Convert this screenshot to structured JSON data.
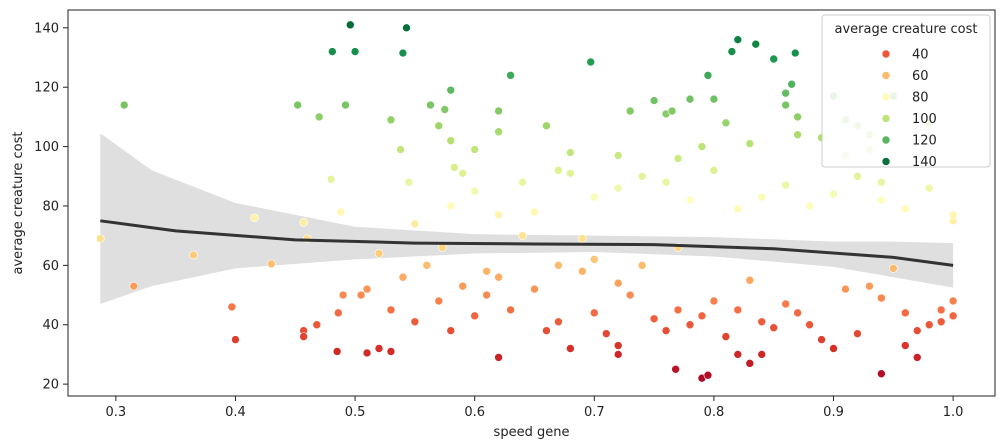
{
  "chart_data": {
    "type": "scatter",
    "xlabel": "speed gene",
    "ylabel": "average creature cost",
    "xlim": [
      0.26,
      1.035
    ],
    "ylim": [
      16,
      146
    ],
    "xticks": [
      0.3,
      0.4,
      0.5,
      0.6,
      0.7,
      0.8,
      0.9,
      1.0
    ],
    "xtick_labels": [
      "0.3",
      "0.4",
      "0.5",
      "0.6",
      "0.7",
      "0.8",
      "0.9",
      "1.0"
    ],
    "yticks": [
      20,
      40,
      60,
      80,
      100,
      120,
      140
    ],
    "ytick_labels": [
      "20",
      "40",
      "60",
      "80",
      "100",
      "120",
      "140"
    ],
    "grid": false,
    "hue_range": [
      20,
      142
    ],
    "legend": {
      "title": "average creature cost",
      "placement": "top-right",
      "entries": [
        {
          "label": "40",
          "value": 40
        },
        {
          "label": "60",
          "value": 60
        },
        {
          "label": "80",
          "value": 80
        },
        {
          "label": "100",
          "value": 100
        },
        {
          "label": "120",
          "value": 120
        },
        {
          "label": "140",
          "value": 140
        }
      ]
    },
    "colormap": [
      "#a50026",
      "#d73027",
      "#f46d43",
      "#fdae61",
      "#fee08b",
      "#ffffbf",
      "#d9ef8b",
      "#a6d96a",
      "#66bd63",
      "#1a9850",
      "#006837"
    ],
    "points": [
      [
        0.287,
        69
      ],
      [
        0.307,
        114
      ],
      [
        0.315,
        53
      ],
      [
        0.365,
        63.5
      ],
      [
        0.397,
        46
      ],
      [
        0.4,
        35
      ],
      [
        0.416,
        76
      ],
      [
        0.43,
        60.5
      ],
      [
        0.452,
        114
      ],
      [
        0.457,
        74.5
      ],
      [
        0.457,
        38
      ],
      [
        0.457,
        36
      ],
      [
        0.46,
        69
      ],
      [
        0.468,
        40
      ],
      [
        0.47,
        110
      ],
      [
        0.48,
        89
      ],
      [
        0.481,
        132
      ],
      [
        0.485,
        31
      ],
      [
        0.486,
        44
      ],
      [
        0.488,
        78
      ],
      [
        0.49,
        50
      ],
      [
        0.492,
        114
      ],
      [
        0.496,
        141
      ],
      [
        0.5,
        132
      ],
      [
        0.505,
        50
      ],
      [
        0.51,
        30.5
      ],
      [
        0.52,
        32
      ],
      [
        0.53,
        31
      ],
      [
        0.53,
        109
      ],
      [
        0.54,
        131.5
      ],
      [
        0.543,
        140
      ],
      [
        0.538,
        99
      ],
      [
        0.545,
        88
      ],
      [
        0.563,
        114
      ],
      [
        0.57,
        107
      ],
      [
        0.575,
        112.5
      ],
      [
        0.58,
        119
      ],
      [
        0.58,
        102
      ],
      [
        0.583,
        93
      ],
      [
        0.573,
        66
      ],
      [
        0.58,
        38
      ],
      [
        0.59,
        91
      ],
      [
        0.61,
        58
      ],
      [
        0.62,
        29
      ],
      [
        0.62,
        112
      ],
      [
        0.62,
        105
      ],
      [
        0.63,
        124
      ],
      [
        0.64,
        88
      ],
      [
        0.66,
        107
      ],
      [
        0.67,
        60
      ],
      [
        0.68,
        91
      ],
      [
        0.69,
        69
      ],
      [
        0.697,
        128.5
      ],
      [
        0.7,
        62
      ],
      [
        0.72,
        30
      ],
      [
        0.72,
        33
      ],
      [
        0.73,
        112
      ],
      [
        0.75,
        115.5
      ],
      [
        0.76,
        111
      ],
      [
        0.765,
        112
      ],
      [
        0.768,
        25
      ],
      [
        0.77,
        45
      ],
      [
        0.78,
        116
      ],
      [
        0.79,
        22
      ],
      [
        0.795,
        23
      ],
      [
        0.795,
        124
      ],
      [
        0.8,
        116
      ],
      [
        0.81,
        108
      ],
      [
        0.815,
        132
      ],
      [
        0.82,
        136
      ],
      [
        0.82,
        30
      ],
      [
        0.83,
        27
      ],
      [
        0.835,
        134.5
      ],
      [
        0.84,
        30
      ],
      [
        0.85,
        129.5
      ],
      [
        0.86,
        118
      ],
      [
        0.865,
        121
      ],
      [
        0.868,
        131.5
      ],
      [
        0.86,
        114
      ],
      [
        0.87,
        110
      ],
      [
        0.89,
        103
      ],
      [
        0.9,
        117
      ],
      [
        0.91,
        109
      ],
      [
        0.92,
        107
      ],
      [
        0.93,
        104
      ],
      [
        0.94,
        88
      ],
      [
        0.95,
        117
      ],
      [
        0.96,
        33
      ],
      [
        0.97,
        29
      ],
      [
        0.98,
        108
      ],
      [
        0.99,
        45
      ],
      [
        1.0,
        48
      ],
      [
        1.0,
        43
      ],
      [
        1.0,
        75
      ],
      [
        1.0,
        77
      ],
      [
        0.94,
        23.5
      ],
      [
        0.51,
        52
      ],
      [
        0.52,
        64
      ],
      [
        0.53,
        45
      ],
      [
        0.54,
        56
      ],
      [
        0.55,
        41
      ],
      [
        0.56,
        60
      ],
      [
        0.57,
        48
      ],
      [
        0.59,
        53
      ],
      [
        0.6,
        43
      ],
      [
        0.61,
        50
      ],
      [
        0.62,
        56
      ],
      [
        0.63,
        45
      ],
      [
        0.64,
        70
      ],
      [
        0.65,
        52
      ],
      [
        0.66,
        38
      ],
      [
        0.67,
        41
      ],
      [
        0.68,
        32
      ],
      [
        0.69,
        58
      ],
      [
        0.7,
        44
      ],
      [
        0.71,
        37
      ],
      [
        0.72,
        54
      ],
      [
        0.73,
        50
      ],
      [
        0.74,
        60
      ],
      [
        0.75,
        42
      ],
      [
        0.76,
        38
      ],
      [
        0.77,
        66
      ],
      [
        0.78,
        40
      ],
      [
        0.79,
        43
      ],
      [
        0.8,
        48
      ],
      [
        0.81,
        36
      ],
      [
        0.82,
        45
      ],
      [
        0.83,
        55
      ],
      [
        0.84,
        41
      ],
      [
        0.85,
        39
      ],
      [
        0.86,
        47
      ],
      [
        0.87,
        44
      ],
      [
        0.88,
        40
      ],
      [
        0.89,
        35
      ],
      [
        0.9,
        32
      ],
      [
        0.91,
        52
      ],
      [
        0.92,
        37
      ],
      [
        0.93,
        53
      ],
      [
        0.94,
        49
      ],
      [
        0.95,
        59
      ],
      [
        0.96,
        44
      ],
      [
        0.97,
        38
      ],
      [
        0.98,
        40
      ],
      [
        0.99,
        41
      ],
      [
        0.55,
        74
      ],
      [
        0.58,
        80
      ],
      [
        0.6,
        85
      ],
      [
        0.62,
        77
      ],
      [
        0.65,
        78
      ],
      [
        0.67,
        92
      ],
      [
        0.7,
        83
      ],
      [
        0.72,
        86
      ],
      [
        0.74,
        90
      ],
      [
        0.76,
        88
      ],
      [
        0.78,
        82
      ],
      [
        0.8,
        92
      ],
      [
        0.82,
        79
      ],
      [
        0.84,
        83
      ],
      [
        0.86,
        87
      ],
      [
        0.88,
        80
      ],
      [
        0.9,
        84
      ],
      [
        0.92,
        90
      ],
      [
        0.94,
        82
      ],
      [
        0.96,
        79
      ],
      [
        0.98,
        86
      ],
      [
        0.77,
        96
      ],
      [
        0.79,
        100
      ],
      [
        0.83,
        101
      ],
      [
        0.87,
        104
      ],
      [
        0.91,
        97
      ],
      [
        0.93,
        99
      ],
      [
        0.68,
        98
      ],
      [
        0.72,
        97
      ],
      [
        0.6,
        99
      ]
    ],
    "regression": {
      "line": [
        [
          0.287,
          75
        ],
        [
          0.35,
          71.6
        ],
        [
          0.45,
          68.6
        ],
        [
          0.55,
          67.5
        ],
        [
          0.65,
          67.2
        ],
        [
          0.75,
          67
        ],
        [
          0.85,
          65.6
        ],
        [
          0.95,
          62.7
        ],
        [
          1.0,
          60
        ]
      ],
      "ci_upper": [
        [
          0.287,
          104.5
        ],
        [
          0.33,
          92
        ],
        [
          0.4,
          81
        ],
        [
          0.5,
          73
        ],
        [
          0.6,
          70.5
        ],
        [
          0.7,
          70
        ],
        [
          0.8,
          69.5
        ],
        [
          0.9,
          68
        ],
        [
          0.95,
          68
        ],
        [
          1.0,
          67.5
        ]
      ],
      "ci_lower": [
        [
          0.287,
          47
        ],
        [
          0.33,
          53
        ],
        [
          0.4,
          59
        ],
        [
          0.5,
          62
        ],
        [
          0.6,
          64
        ],
        [
          0.7,
          64.5
        ],
        [
          0.8,
          63
        ],
        [
          0.9,
          59.5
        ],
        [
          0.95,
          56
        ],
        [
          1.0,
          52.5
        ]
      ]
    }
  }
}
